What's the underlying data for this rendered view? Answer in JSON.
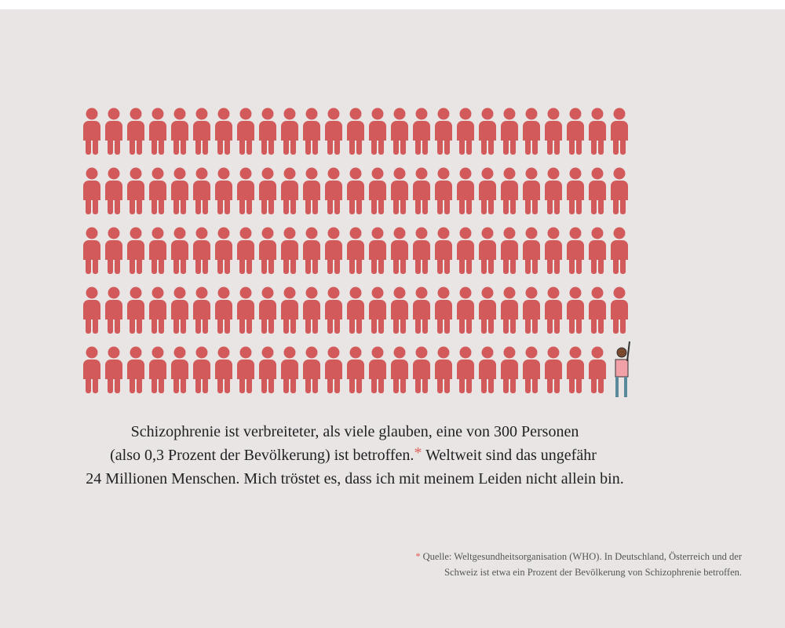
{
  "body": {
    "line1": "Schizophrenie ist verbreiteter, als viele glauben, eine von 300 Personen",
    "line2a": "(also 0,3 Prozent der Bevölkerung) ist betroffen.",
    "asterisk": "*",
    "line2b": " Weltweit sind das ungefähr",
    "line3": "24 Millionen Menschen. Mich tröstet es, dass ich mit meinem Leiden nicht allein bin."
  },
  "footnote": {
    "asterisk": "*",
    "line1": "Quelle: Weltgesundheitsorganisation (WHO). In Deutschland, Österreich und der",
    "line2": "Schweiz ist etwa ein Prozent der Bevölkerung von Schizophrenie betroffen."
  }
}
